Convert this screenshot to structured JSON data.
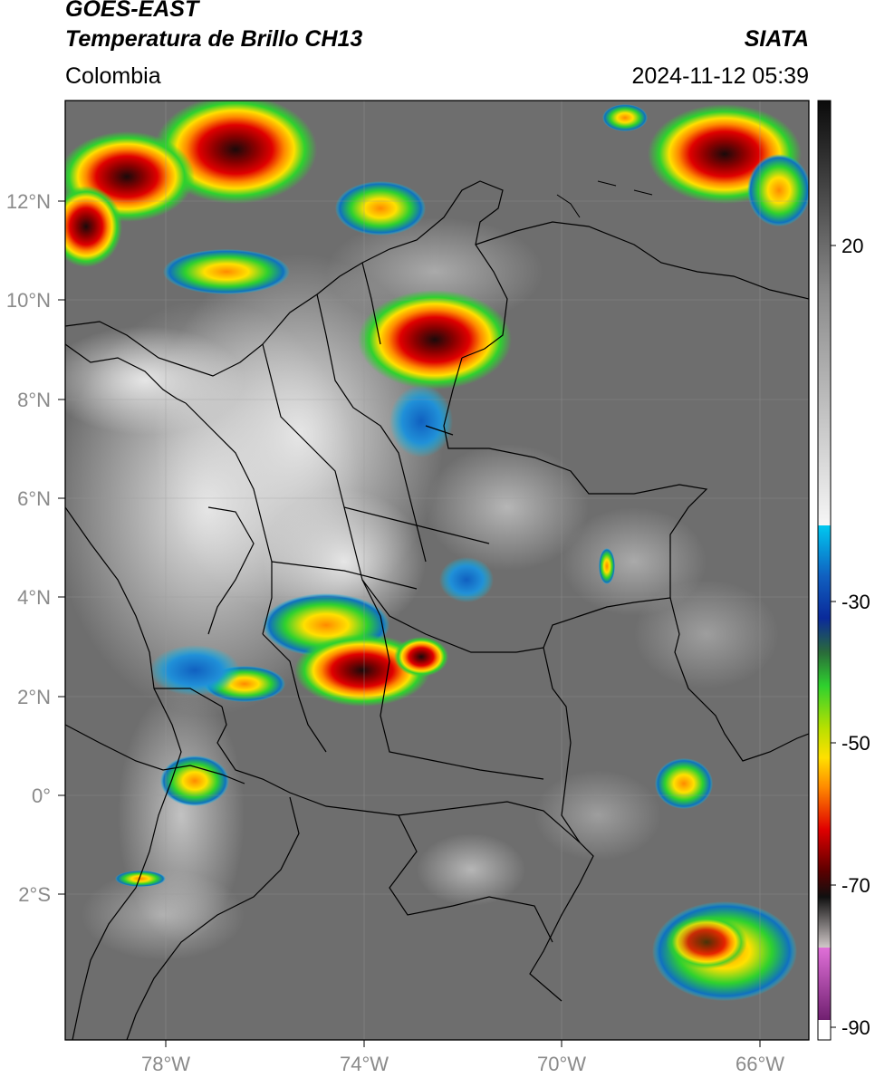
{
  "header": {
    "satellite": "GOES-EAST",
    "product": "Temperatura de Brillo CH13",
    "region": "Colombia",
    "agency": "SIATA",
    "datetime": "2024-11-12 05:39"
  },
  "axes": {
    "lat_labels": [
      "12°N",
      "10°N",
      "8°N",
      "6°N",
      "4°N",
      "2°N",
      "0°",
      "2°S"
    ],
    "lon_labels": [
      "78°W",
      "74°W",
      "70°W",
      "66°W"
    ]
  },
  "colorbar": {
    "tick_labels": [
      "20",
      "-30",
      "-50",
      "-70",
      "-90"
    ],
    "colors": {
      "gray_ramp_top": "#0a0a0a",
      "gray_ramp_bottom": "#f4f4f4",
      "cyan": "#00c8f0",
      "blue": "#0a2a9a",
      "green": "#2ed12e",
      "yellow": "#ffe000",
      "orange": "#ff8a00",
      "red": "#e00000",
      "darkred": "#5a0000",
      "magenta": "#d050c8"
    }
  }
}
